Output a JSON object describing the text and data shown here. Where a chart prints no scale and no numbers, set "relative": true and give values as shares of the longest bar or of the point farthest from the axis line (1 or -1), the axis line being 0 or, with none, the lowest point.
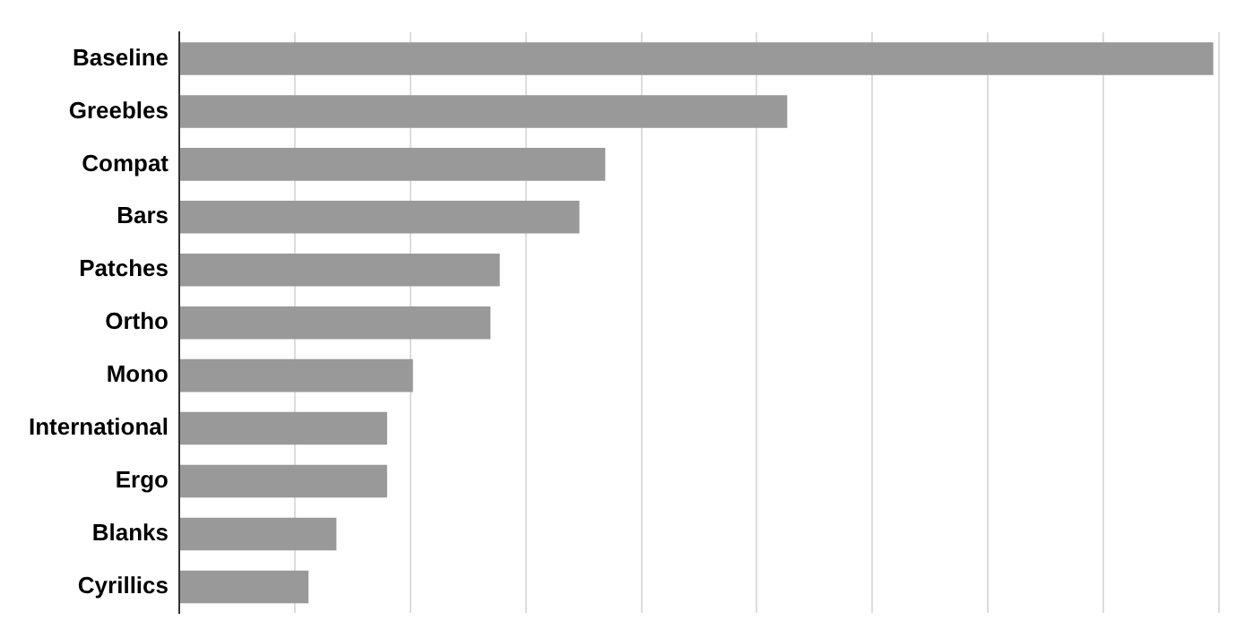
{
  "chart_data": {
    "type": "bar",
    "orientation": "horizontal",
    "relative": true,
    "grid": "x",
    "categories": [
      "Baseline",
      "Greebles",
      "Compat",
      "Bars",
      "Patches",
      "Ortho",
      "Mono",
      "International",
      "Ergo",
      "Blanks",
      "Cyrillics"
    ],
    "values": [
      1,
      0.588,
      0.412,
      0.387,
      0.31,
      0.301,
      0.226,
      0.201,
      0.201,
      0.152,
      0.125
    ],
    "color": "#999999"
  }
}
